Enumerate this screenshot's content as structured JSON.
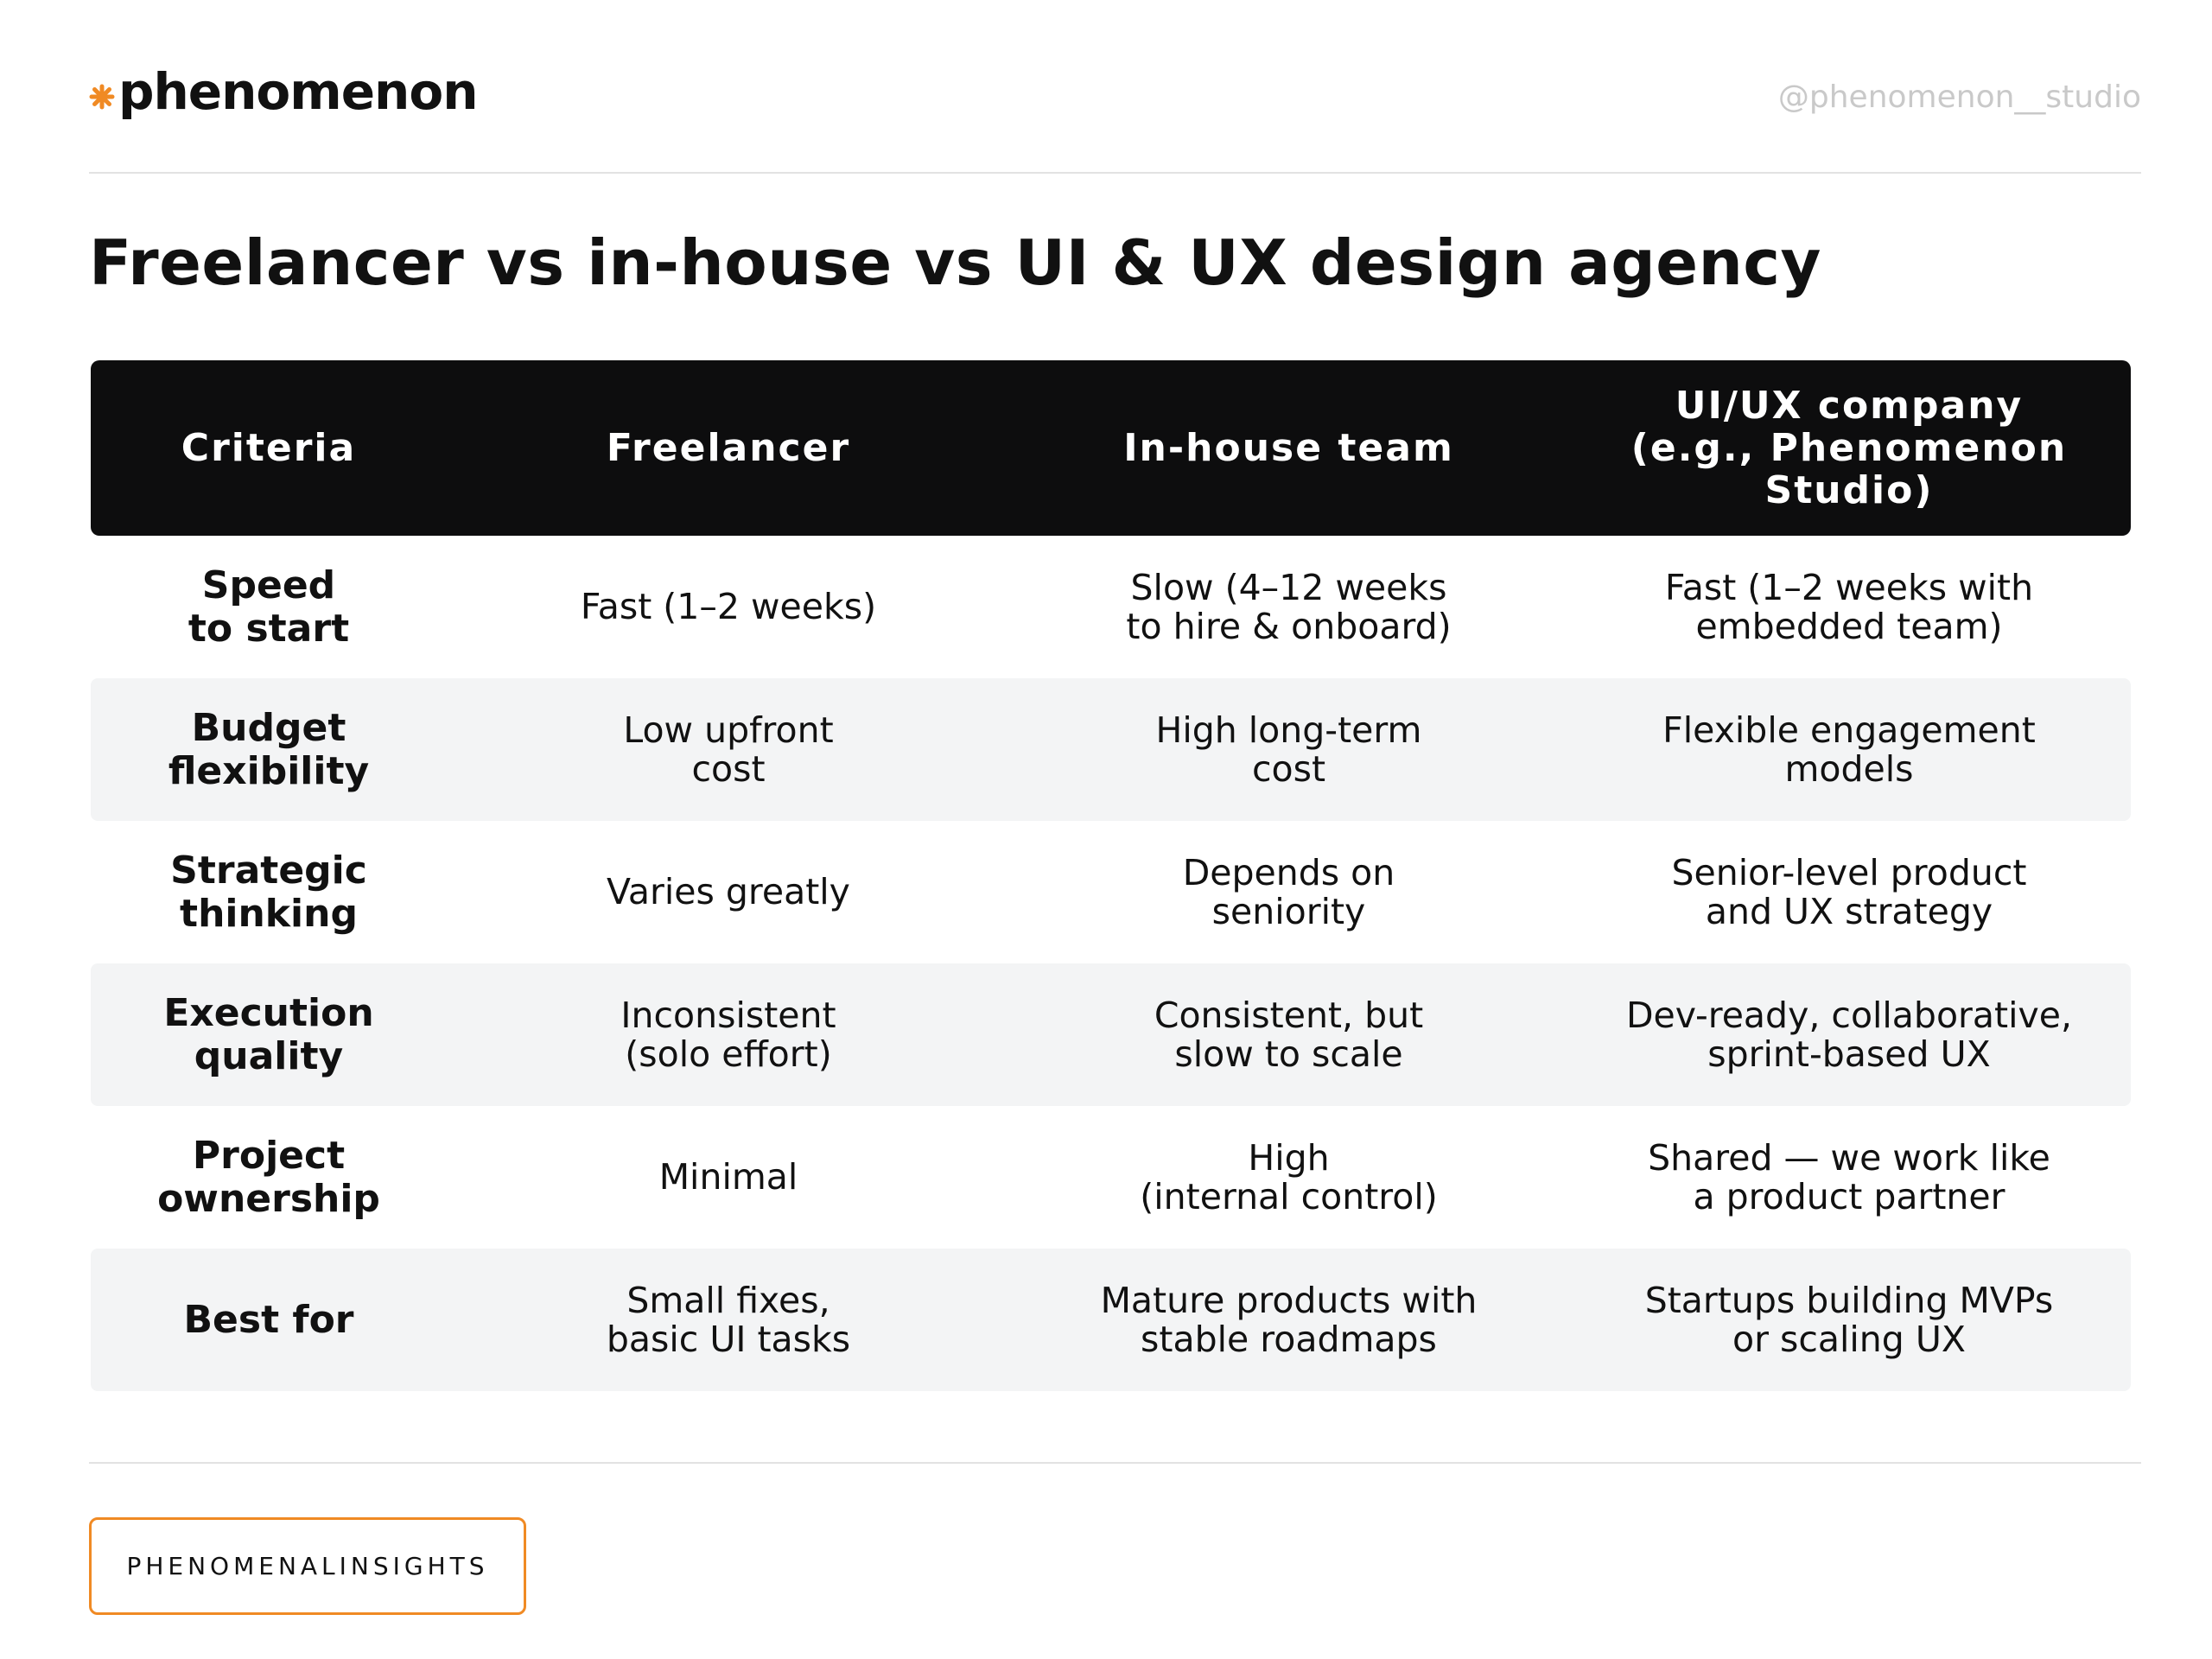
{
  "header": {
    "logo": "phenomenon",
    "handle": "@phenomenon__studio"
  },
  "title": "Freelancer vs in-house vs UI & UX design agency",
  "table": {
    "header": [
      "Criteria",
      "Freelancer",
      "In-house team",
      "UI/UX company\n(e.g., Phenomenon\nStudio)"
    ],
    "rows": [
      [
        "Speed\nto start",
        "Fast (1–2 weeks)",
        "Slow (4–12 weeks\nto hire & onboard)",
        "Fast (1–2 weeks with\nembedded team)"
      ],
      [
        "Budget\nflexibility",
        "Low upfront\ncost",
        "High long-term\ncost",
        "Flexible engagement\nmodels"
      ],
      [
        "Strategic\nthinking",
        "Varies greatly",
        "Depends on\nseniority",
        "Senior-level product\nand UX strategy"
      ],
      [
        "Execution\nquality",
        "Inconsistent\n(solo effort)",
        "Consistent, but\nslow to scale",
        "Dev-ready, collaborative,\nsprint-based UX"
      ],
      [
        "Project\nownership",
        "Minimal",
        "High\n(internal control)",
        "Shared — we work like\na product partner"
      ],
      [
        "Best for",
        "Small fixes,\nbasic UI tasks",
        "Mature products with\nstable roadmaps",
        "Startups building MVPs\nor scaling UX"
      ]
    ]
  },
  "footer": {
    "tag": "PHENOMENALINSIGHTS"
  }
}
